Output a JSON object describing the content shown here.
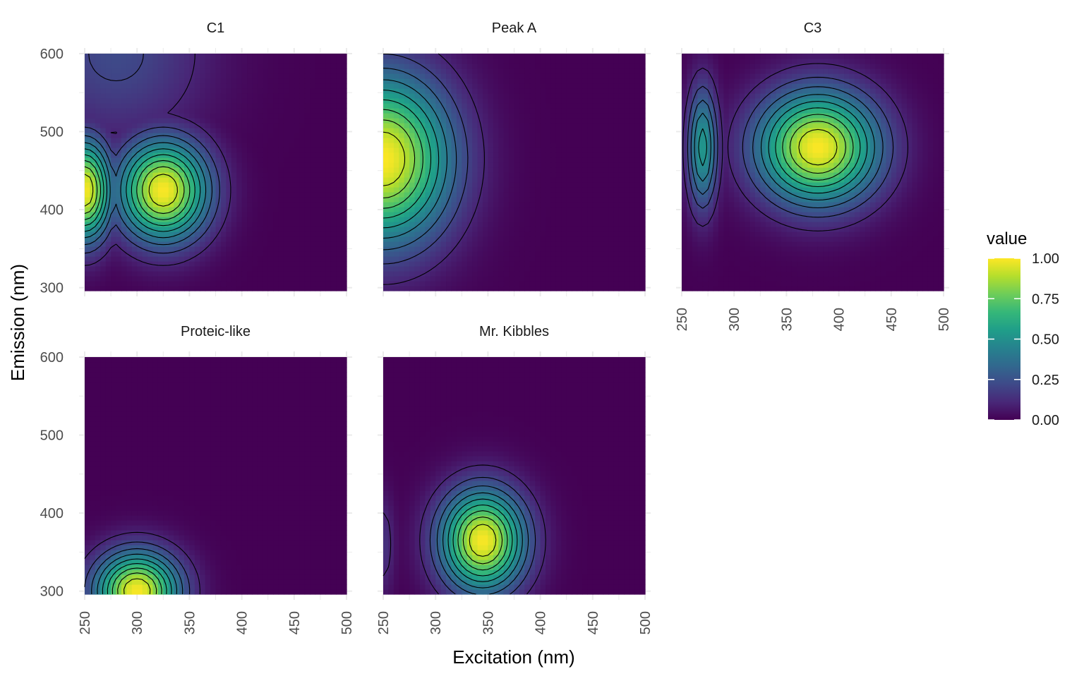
{
  "chart_data": {
    "type": "heatmap",
    "subtype": "faceted contour heatmap (EEM)",
    "xlabel": "Excitation (nm)",
    "ylabel": "Emission (nm)",
    "xlim": [
      250,
      500
    ],
    "ylim": [
      300,
      600
    ],
    "x_ticks": [
      "250",
      "300",
      "350",
      "400",
      "450",
      "500"
    ],
    "y_ticks": [
      "300",
      "400",
      "500",
      "600"
    ],
    "grid": true,
    "color_scale": {
      "name": "viridis",
      "colors": [
        "#440154",
        "#482878",
        "#3E4A89",
        "#31688E",
        "#26828E",
        "#1F9E89",
        "#35B779",
        "#6DCD59",
        "#B4DE2C",
        "#FDE725"
      ]
    },
    "legend": {
      "title": "value",
      "position": "right",
      "ticks": [
        "0.00",
        "0.25",
        "0.50",
        "0.75",
        "1.00"
      ],
      "range": [
        0,
        1
      ]
    },
    "contour_levels": [
      0.1,
      0.2,
      0.3,
      0.4,
      0.5,
      0.6,
      0.7,
      0.8,
      0.9
    ],
    "facets": [
      {
        "title": "C1",
        "peaks": [
          {
            "ex": 250,
            "em": 425,
            "amp": 1.0,
            "sx": 18,
            "sy": 45
          },
          {
            "ex": 325,
            "em": 425,
            "amp": 1.0,
            "sx": 30,
            "sy": 45
          },
          {
            "ex": 280,
            "em": 600,
            "amp": 0.22,
            "sx": 60,
            "sy": 80
          }
        ]
      },
      {
        "title": "Peak A",
        "peaks": [
          {
            "ex": 250,
            "em": 465,
            "amp": 1.0,
            "sx": 45,
            "sy": 75
          }
        ]
      },
      {
        "title": "C3",
        "peaks": [
          {
            "ex": 270,
            "em": 480,
            "amp": 0.55,
            "sx": 10,
            "sy": 55
          },
          {
            "ex": 380,
            "em": 480,
            "amp": 1.0,
            "sx": 40,
            "sy": 50
          }
        ]
      },
      {
        "title": "Proteic-like",
        "peaks": [
          {
            "ex": 300,
            "em": 300,
            "amp": 1.0,
            "sx": 28,
            "sy": 35
          }
        ]
      },
      {
        "title": "Mr. Kibbles",
        "peaks": [
          {
            "ex": 345,
            "em": 365,
            "amp": 1.0,
            "sx": 28,
            "sy": 45
          },
          {
            "ex": 250,
            "em": 360,
            "amp": 0.15,
            "sx": 8,
            "sy": 45
          }
        ]
      }
    ]
  }
}
